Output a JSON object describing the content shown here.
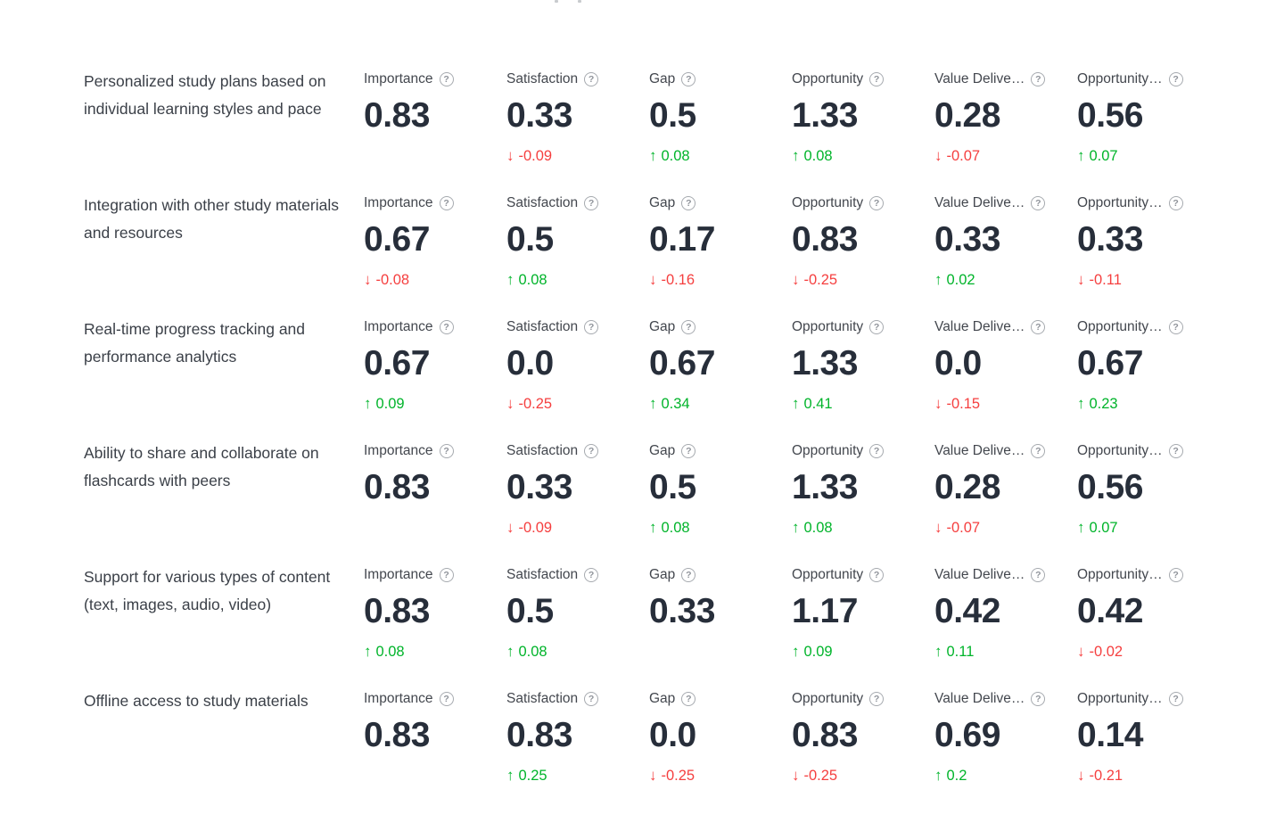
{
  "page": {
    "background": "#ffffff"
  },
  "colors": {
    "positive": "#00b42a",
    "negative": "#f53f3f",
    "value_text": "#272e3a",
    "label_text": "#43474e",
    "feature_text": "#3b4048",
    "help_icon": "#a6aaaf"
  },
  "glyphs": {
    "up_arrow": "↑",
    "down_arrow": "↓",
    "help": "?"
  },
  "table": {
    "metric_columns": [
      "Importance",
      "Satisfaction",
      "Gap",
      "Opportunity",
      "Value Delive…",
      "Opportunity…"
    ],
    "rows": [
      {
        "feature": "Personalized study plans based on individual learning styles and pace",
        "metrics": [
          {
            "label": "Importance",
            "value": "0.83",
            "delta": null,
            "direction": null
          },
          {
            "label": "Satisfaction",
            "value": "0.33",
            "delta": "-0.09",
            "direction": "down"
          },
          {
            "label": "Gap",
            "value": "0.5",
            "delta": "0.08",
            "direction": "up"
          },
          {
            "label": "Opportunity",
            "value": "1.33",
            "delta": "0.08",
            "direction": "up"
          },
          {
            "label": "Value Delive…",
            "value": "0.28",
            "delta": "-0.07",
            "direction": "down"
          },
          {
            "label": "Opportunity…",
            "value": "0.56",
            "delta": "0.07",
            "direction": "up"
          }
        ]
      },
      {
        "feature": "Integration with other study materials and resources",
        "metrics": [
          {
            "label": "Importance",
            "value": "0.67",
            "delta": "-0.08",
            "direction": "down"
          },
          {
            "label": "Satisfaction",
            "value": "0.5",
            "delta": "0.08",
            "direction": "up"
          },
          {
            "label": "Gap",
            "value": "0.17",
            "delta": "-0.16",
            "direction": "down"
          },
          {
            "label": "Opportunity",
            "value": "0.83",
            "delta": "-0.25",
            "direction": "down"
          },
          {
            "label": "Value Delive…",
            "value": "0.33",
            "delta": "0.02",
            "direction": "up"
          },
          {
            "label": "Opportunity…",
            "value": "0.33",
            "delta": "-0.11",
            "direction": "down"
          }
        ]
      },
      {
        "feature": "Real-time progress tracking and performance analytics",
        "metrics": [
          {
            "label": "Importance",
            "value": "0.67",
            "delta": "0.09",
            "direction": "up"
          },
          {
            "label": "Satisfaction",
            "value": "0.0",
            "delta": "-0.25",
            "direction": "down"
          },
          {
            "label": "Gap",
            "value": "0.67",
            "delta": "0.34",
            "direction": "up"
          },
          {
            "label": "Opportunity",
            "value": "1.33",
            "delta": "0.41",
            "direction": "up"
          },
          {
            "label": "Value Delive…",
            "value": "0.0",
            "delta": "-0.15",
            "direction": "down"
          },
          {
            "label": "Opportunity…",
            "value": "0.67",
            "delta": "0.23",
            "direction": "up"
          }
        ]
      },
      {
        "feature": "Ability to share and collaborate on flashcards with peers",
        "metrics": [
          {
            "label": "Importance",
            "value": "0.83",
            "delta": null,
            "direction": null
          },
          {
            "label": "Satisfaction",
            "value": "0.33",
            "delta": "-0.09",
            "direction": "down"
          },
          {
            "label": "Gap",
            "value": "0.5",
            "delta": "0.08",
            "direction": "up"
          },
          {
            "label": "Opportunity",
            "value": "1.33",
            "delta": "0.08",
            "direction": "up"
          },
          {
            "label": "Value Delive…",
            "value": "0.28",
            "delta": "-0.07",
            "direction": "down"
          },
          {
            "label": "Opportunity…",
            "value": "0.56",
            "delta": "0.07",
            "direction": "up"
          }
        ]
      },
      {
        "feature": "Support for various types of content (text, images, audio, video)",
        "metrics": [
          {
            "label": "Importance",
            "value": "0.83",
            "delta": "0.08",
            "direction": "up"
          },
          {
            "label": "Satisfaction",
            "value": "0.5",
            "delta": "0.08",
            "direction": "up"
          },
          {
            "label": "Gap",
            "value": "0.33",
            "delta": null,
            "direction": null
          },
          {
            "label": "Opportunity",
            "value": "1.17",
            "delta": "0.09",
            "direction": "up"
          },
          {
            "label": "Value Delive…",
            "value": "0.42",
            "delta": "0.11",
            "direction": "up"
          },
          {
            "label": "Opportunity…",
            "value": "0.42",
            "delta": "-0.02",
            "direction": "down"
          }
        ]
      },
      {
        "feature": "Offline access to study materials",
        "metrics": [
          {
            "label": "Importance",
            "value": "0.83",
            "delta": null,
            "direction": null
          },
          {
            "label": "Satisfaction",
            "value": "0.83",
            "delta": "0.25",
            "direction": "up"
          },
          {
            "label": "Gap",
            "value": "0.0",
            "delta": "-0.25",
            "direction": "down"
          },
          {
            "label": "Opportunity",
            "value": "0.83",
            "delta": "-0.25",
            "direction": "down"
          },
          {
            "label": "Value Delive…",
            "value": "0.69",
            "delta": "0.2",
            "direction": "up"
          },
          {
            "label": "Opportunity…",
            "value": "0.14",
            "delta": "-0.21",
            "direction": "down"
          }
        ]
      }
    ]
  }
}
